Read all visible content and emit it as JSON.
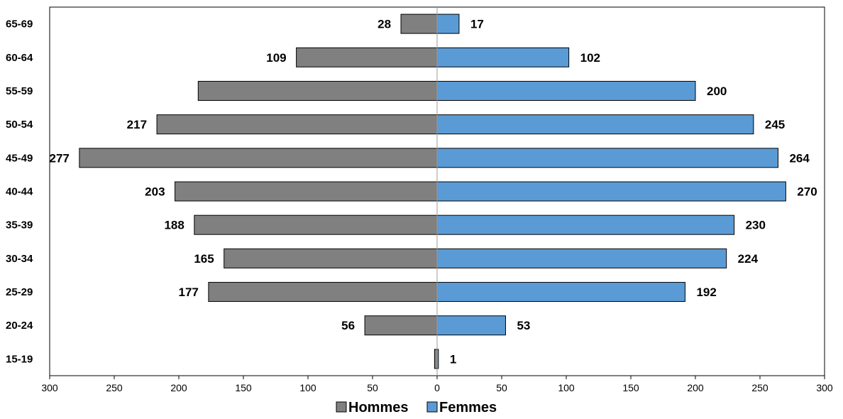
{
  "chart_data": {
    "type": "bar",
    "orientation": "horizontal",
    "categories": [
      "65-69",
      "60-64",
      "55-59",
      "50-54",
      "45-49",
      "40-44",
      "35-39",
      "30-34",
      "25-29",
      "20-24",
      "15-19"
    ],
    "series": [
      {
        "name": "Hommes",
        "side": "left",
        "color": "#808080",
        "values": [
          28,
          109,
          185,
          217,
          277,
          203,
          188,
          165,
          177,
          56,
          2
        ],
        "labels": [
          "28",
          "109",
          "",
          "217",
          "277",
          "203",
          "188",
          "165",
          "177",
          "56",
          ""
        ]
      },
      {
        "name": "Femmes",
        "side": "right",
        "color": "#5B9BD5",
        "values": [
          17,
          102,
          200,
          245,
          264,
          270,
          230,
          224,
          192,
          53,
          1
        ],
        "labels": [
          "17",
          "102",
          "200",
          "245",
          "264",
          "270",
          "230",
          "224",
          "192",
          "53",
          "1"
        ]
      }
    ],
    "xlim": [
      -300,
      300
    ],
    "xticks": [
      -300,
      -250,
      -200,
      -150,
      -100,
      -50,
      0,
      50,
      100,
      150,
      200,
      250,
      300
    ],
    "xtick_labels": [
      "300",
      "250",
      "200",
      "150",
      "100",
      "50",
      "0",
      "50",
      "100",
      "150",
      "200",
      "250",
      "300"
    ],
    "legend_position": "bottom",
    "grid": false
  }
}
